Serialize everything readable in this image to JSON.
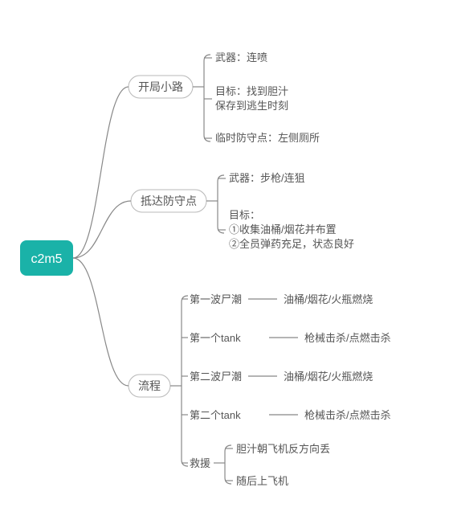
{
  "colors": {
    "root_bg": "#1ab2a8",
    "root_text": "#ffffff",
    "node_border": "#b8b8b8",
    "node_text": "#555555",
    "leaf_text": "#555555",
    "edge": "#888888",
    "background": "#ffffff"
  },
  "typography": {
    "root_fontsize": 16,
    "branch_fontsize": 14,
    "leaf_fontsize": 13,
    "font_family": "Microsoft YaHei"
  },
  "mindmap": {
    "type": "tree",
    "root": {
      "label": "c2m5"
    },
    "branches": [
      {
        "label": "开局小路",
        "leaves": [
          {
            "lines": [
              "武器：连喷"
            ]
          },
          {
            "lines": [
              "目标：找到胆汁",
              "保存到逃生时刻"
            ]
          },
          {
            "lines": [
              "临时防守点：左侧厕所"
            ]
          }
        ]
      },
      {
        "label": "抵达防守点",
        "leaves": [
          {
            "lines": [
              "武器：步枪/连狙"
            ]
          },
          {
            "lines": [
              "目标：",
              "①收集油桶/烟花并布置",
              "②全员弹药充足，状态良好"
            ]
          }
        ]
      },
      {
        "label": "流程",
        "children": [
          {
            "label": "第一波尸潮",
            "leaf": "油桶/烟花/火瓶燃烧"
          },
          {
            "label": "第一个tank",
            "leaf": "枪械击杀/点燃击杀"
          },
          {
            "label": "第二波尸潮",
            "leaf": "油桶/烟花/火瓶燃烧"
          },
          {
            "label": "第二个tank",
            "leaf": "枪械击杀/点燃击杀"
          },
          {
            "label": "救援",
            "leaves": [
              {
                "lines": [
                  "胆汁朝飞机反方向丢"
                ]
              },
              {
                "lines": [
                  "随后上飞机"
                ]
              }
            ]
          }
        ]
      }
    ]
  }
}
